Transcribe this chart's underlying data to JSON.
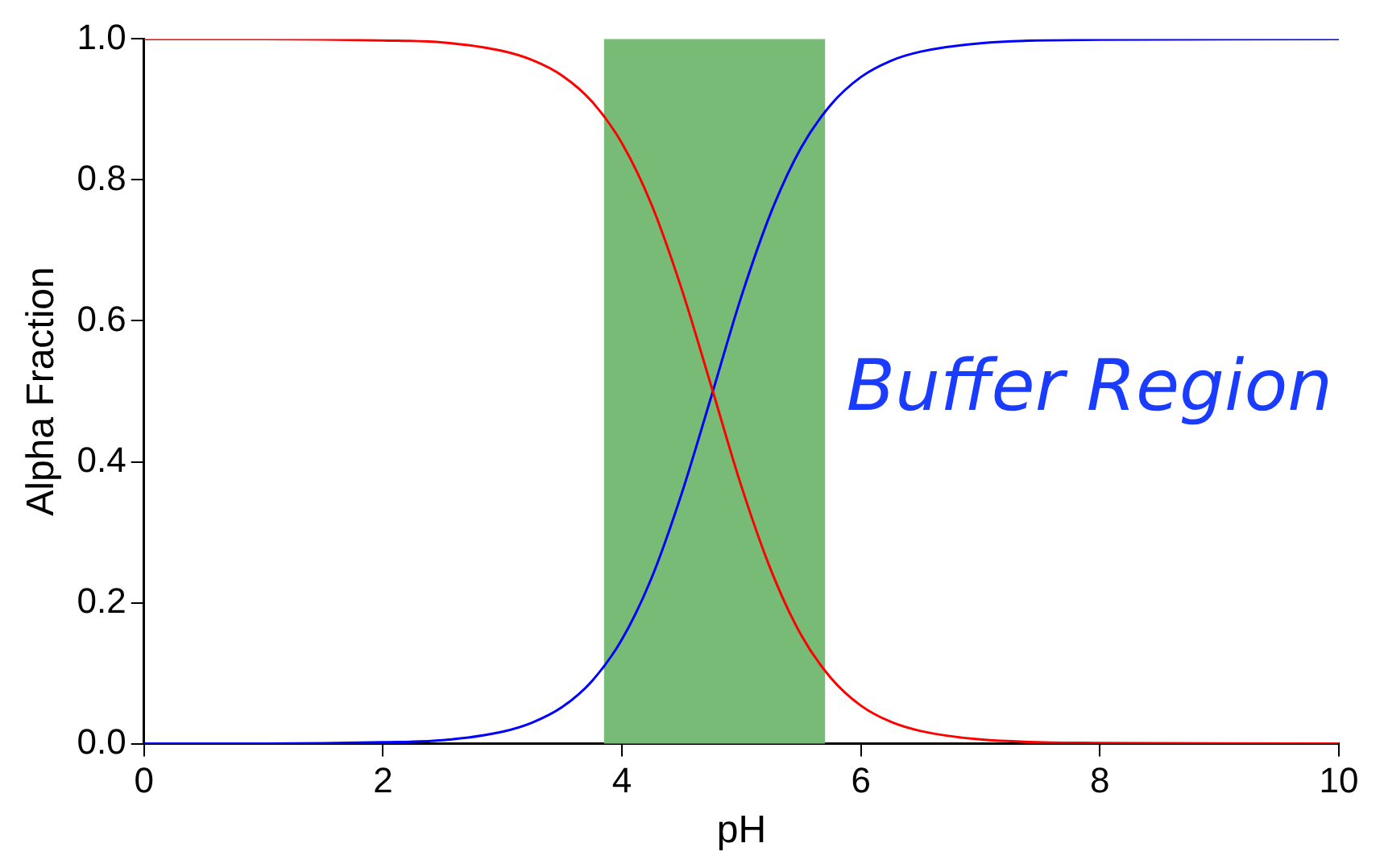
{
  "chart_data": {
    "type": "line",
    "xlabel": "pH",
    "ylabel": "Alpha Fraction",
    "x": [
      0,
      1,
      2,
      2.5,
      3,
      3.25,
      3.5,
      3.75,
      4,
      4.25,
      4.5,
      4.75,
      5,
      5.25,
      5.5,
      5.75,
      6,
      6.25,
      6.5,
      7,
      8,
      10
    ],
    "series": [
      {
        "color": "#ff0000",
        "values": [
          1.0,
          1.0,
          0.998,
          0.995,
          0.983,
          0.97,
          0.948,
          0.911,
          0.852,
          0.764,
          0.645,
          0.506,
          0.365,
          0.245,
          0.154,
          0.093,
          0.054,
          0.031,
          0.018,
          0.006,
          0.001,
          0.0
        ]
      },
      {
        "color": "#0000ff",
        "values": [
          0.0,
          0.0,
          0.002,
          0.005,
          0.017,
          0.03,
          0.052,
          0.089,
          0.148,
          0.236,
          0.355,
          0.494,
          0.635,
          0.755,
          0.846,
          0.907,
          0.946,
          0.969,
          0.982,
          0.994,
          0.999,
          1.0
        ]
      }
    ],
    "bands": [
      {
        "axis": "x",
        "from": 3.85,
        "to": 5.7,
        "color": "#77bb77"
      }
    ],
    "annotations": [
      "Buffer Region"
    ],
    "xlim": [
      0,
      10
    ],
    "xticks": [
      0,
      2,
      4,
      6,
      8,
      10
    ],
    "ylim": [
      0,
      1
    ],
    "yticks": [
      {
        "value": 0,
        "label": "0.0"
      },
      {
        "value": 0.2,
        "label": "0.2"
      },
      {
        "value": 0.4,
        "label": "0.4"
      },
      {
        "value": 0.6,
        "label": "0.6"
      },
      {
        "value": 0.8,
        "label": "0.8"
      },
      {
        "value": 1,
        "label": "1.0"
      }
    ],
    "grid": false,
    "legend": false,
    "marker": "none",
    "line_style": "solid"
  }
}
